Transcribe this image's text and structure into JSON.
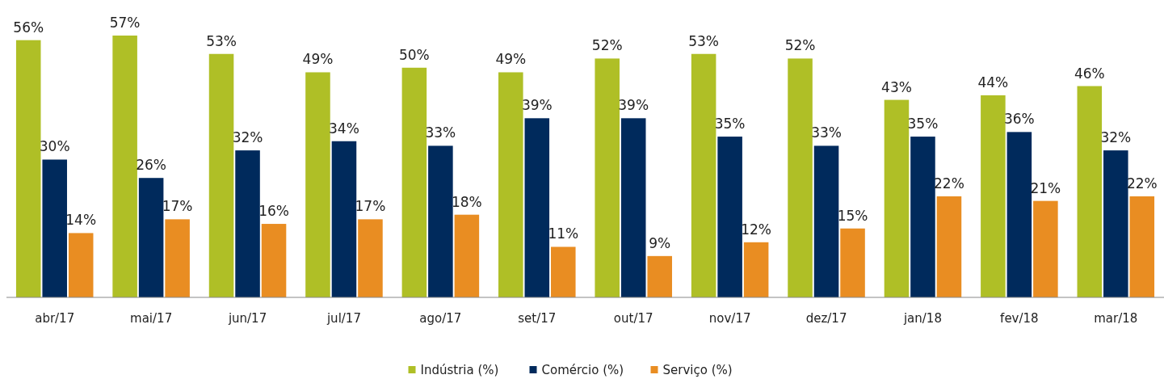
{
  "chart_data": {
    "type": "bar",
    "categories": [
      "abr/17",
      "mai/17",
      "jun/17",
      "jul/17",
      "ago/17",
      "set/17",
      "out/17",
      "nov/17",
      "dez/17",
      "jan/18",
      "fev/18",
      "mar/18"
    ],
    "series": [
      {
        "name": "Indústria (%)",
        "color": "#afbf26",
        "values": [
          56,
          57,
          53,
          49,
          50,
          49,
          52,
          53,
          52,
          43,
          44,
          46
        ],
        "value_labels": [
          "56%",
          "57%",
          "53%",
          "49%",
          "50%",
          "49%",
          "52%",
          "53%",
          "52%",
          "43%",
          "44%",
          "46%"
        ]
      },
      {
        "name": "Comércio (%)",
        "color": "#002a5c",
        "values": [
          30,
          26,
          32,
          34,
          33,
          39,
          39,
          35,
          33,
          35,
          36,
          32
        ],
        "value_labels": [
          "30%",
          "26%",
          "32%",
          "34%",
          "33%",
          "39%",
          "39%",
          "35%",
          "33%",
          "35%",
          "36%",
          "32%"
        ]
      },
      {
        "name": "Serviço (%)",
        "color": "#e98d22",
        "values": [
          14,
          17,
          16,
          17,
          18,
          11,
          9,
          12,
          15,
          22,
          21,
          22
        ],
        "value_labels": [
          "14%",
          "17%",
          "16%",
          "17%",
          "18%",
          "11%",
          "9%",
          "12%",
          "15%",
          "22%",
          "21%",
          "22%"
        ]
      }
    ],
    "legend": "bottom"
  }
}
